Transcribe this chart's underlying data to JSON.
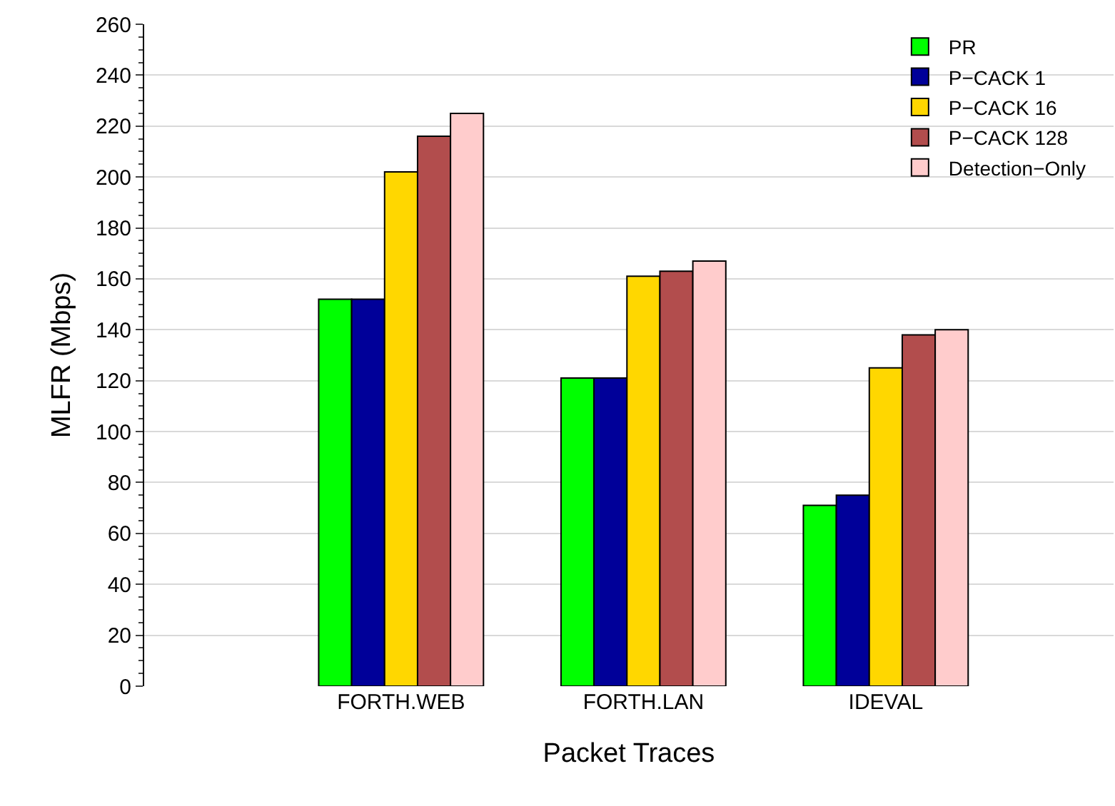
{
  "chart_data": {
    "type": "bar",
    "xlabel": "Packet Traces",
    "ylabel": "MLFR (Mbps)",
    "categories": [
      "FORTH.WEB",
      "FORTH.LAN",
      "IDEVAL"
    ],
    "series": [
      {
        "name": "PR",
        "color": "#00ff00",
        "values": [
          152,
          121,
          71
        ]
      },
      {
        "name": "P−CACK 1",
        "color": "#000099",
        "values": [
          152,
          121,
          75
        ]
      },
      {
        "name": "P−CACK 16",
        "color": "#ffd700",
        "values": [
          202,
          161,
          125
        ]
      },
      {
        "name": "P−CACK 128",
        "color": "#b24d4d",
        "values": [
          216,
          163,
          138
        ]
      },
      {
        "name": "Detection−Only",
        "color": "#ffcccc",
        "values": [
          225,
          167,
          140
        ]
      }
    ],
    "ylim": [
      0,
      260
    ],
    "yticks": [
      0,
      20,
      40,
      60,
      80,
      100,
      120,
      140,
      160,
      180,
      200,
      220,
      240,
      260
    ],
    "grid": "y",
    "legend": "top right"
  }
}
